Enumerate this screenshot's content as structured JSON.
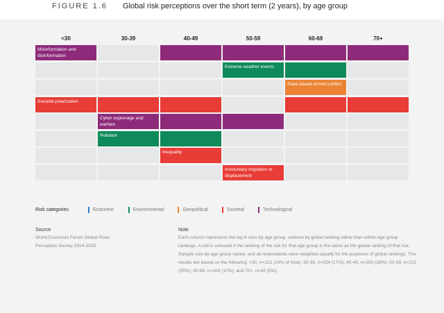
{
  "figure_label": "FIGURE 1.6",
  "title": "Global risk perceptions over the short term (2 years), by age group",
  "chart_data": {
    "type": "table",
    "title": "Global risk perceptions over the short term (2 years), by age group",
    "columns": [
      "<30",
      "30-39",
      "40-49",
      "50-59",
      "60-69",
      "70+"
    ],
    "rows": [
      {
        "risk": "Misinformation and disinformation",
        "category": "Technological",
        "coloured": [
          true,
          false,
          true,
          true,
          true,
          true
        ],
        "label_col": 0
      },
      {
        "risk": "Extreme weather events",
        "category": "Environmental",
        "coloured": [
          false,
          false,
          false,
          true,
          true,
          false
        ],
        "label_col": 3
      },
      {
        "risk": "State-based armed conflict",
        "category": "Geopolitical",
        "coloured": [
          false,
          false,
          false,
          false,
          true,
          false
        ],
        "label_col": 4
      },
      {
        "risk": "Societal polarization",
        "category": "Societal",
        "coloured": [
          true,
          true,
          true,
          false,
          true,
          true
        ],
        "label_col": 0
      },
      {
        "risk": "Cyber espionage and warfare",
        "category": "Technological",
        "coloured": [
          false,
          true,
          true,
          true,
          false,
          false
        ],
        "label_col": 1
      },
      {
        "risk": "Pollution",
        "category": "Environmental",
        "coloured": [
          false,
          true,
          true,
          false,
          false,
          false
        ],
        "label_col": 1
      },
      {
        "risk": "Inequality",
        "category": "Societal",
        "coloured": [
          false,
          false,
          true,
          false,
          false,
          false
        ],
        "label_col": 2
      },
      {
        "risk": "Involuntary migration or displacement",
        "category": "Societal",
        "coloured": [
          false,
          false,
          false,
          true,
          false,
          false
        ],
        "label_col": 3
      }
    ],
    "categories": [
      {
        "name": "Economic",
        "color": "#2d78c0"
      },
      {
        "name": "Environmental",
        "color": "#0f8a5a"
      },
      {
        "name": "Geopolitical",
        "color": "#ea8434"
      },
      {
        "name": "Societal",
        "color": "#e83c37"
      },
      {
        "name": "Technological",
        "color": "#8e2a7a"
      }
    ],
    "empty_color": "#e6e7e8"
  },
  "legend": {
    "title": "Risk categories"
  },
  "source": {
    "heading": "Source",
    "text": "World Economic Forum Global Risks Perception Survey 2024-2025."
  },
  "note": {
    "heading": "Note",
    "text": "Each column represents the top 8 risks by age group, ordered by global ranking rather than within-age group rankings. A cell is coloured if the ranking of the risk for that age group is the same as the global ranking of that risk. Sample size by age group varied, and all respondents were weighted equally for the purposes of global rankings. The results are based on the following: <30, n=122 (14% of total); 30-39, n=154 (17%); 40-49, n=250 (28%); 50-59, n=222 (25%); 60-69, n=104 (12%); and 70+, n=42 (5%)."
  }
}
